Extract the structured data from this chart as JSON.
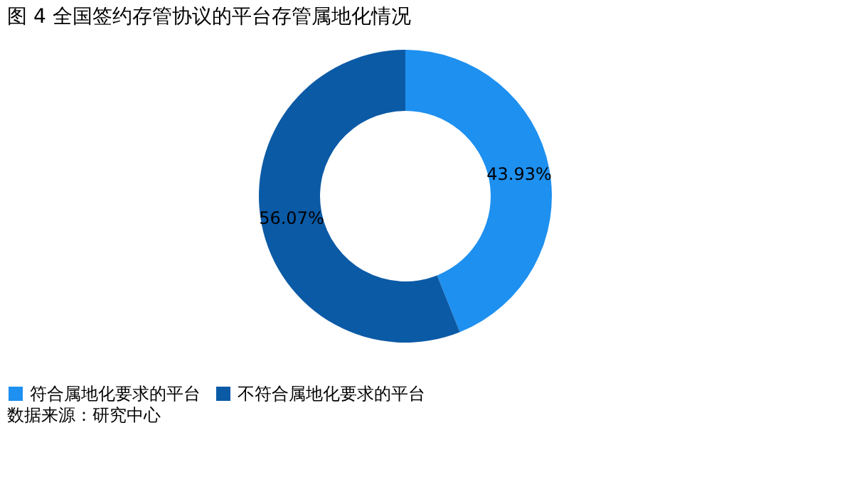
{
  "chart_data": {
    "type": "donut",
    "title": "图 4 全国签约存管协议的平台存管属地化情况",
    "categories": [
      "符合属地化要求的平台",
      "不符合属地化要求的平台"
    ],
    "values": [
      43.93,
      56.07
    ],
    "colors": [
      "#1e90f0",
      "#0b5aa6"
    ],
    "value_labels": [
      "43.93%",
      "56.07%"
    ],
    "legend": "bottom",
    "annotations": [
      "数据来源：研究中心"
    ]
  }
}
